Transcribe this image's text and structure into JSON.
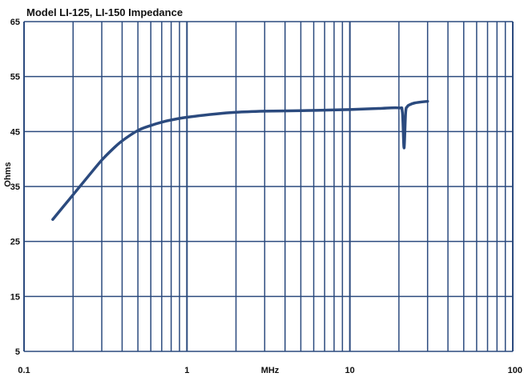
{
  "chart_data": {
    "type": "line",
    "title": "Model LI-125, LI-150 Impedance",
    "xlabel": "MHz",
    "ylabel": "Ohms",
    "x_scale": "log",
    "xlim": [
      0.1,
      100
    ],
    "ylim": [
      5,
      65
    ],
    "x_ticks": [
      0.1,
      1,
      10,
      100
    ],
    "x_tick_labels": [
      "0.1",
      "1",
      "10",
      "100"
    ],
    "y_ticks": [
      5,
      15,
      25,
      35,
      45,
      55,
      65
    ],
    "y_tick_labels": [
      "5",
      "15",
      "25",
      "35",
      "45",
      "55",
      "65"
    ],
    "grid": true,
    "colors": {
      "line": "#2b4a7e",
      "grid": "#2b4a7e",
      "background": "#ffffff"
    },
    "series": [
      {
        "x": [
          0.15,
          0.2,
          0.25,
          0.3,
          0.35,
          0.4,
          0.5,
          0.6,
          0.7,
          0.8,
          1,
          1.5,
          2,
          3,
          5,
          7,
          10,
          15,
          20,
          21,
          21.5,
          22,
          22.5,
          23,
          25,
          30
        ],
        "values": [
          29,
          33.5,
          37,
          39.8,
          41.8,
          43.3,
          45.2,
          46.1,
          46.7,
          47.1,
          47.6,
          48.2,
          48.5,
          48.7,
          48.8,
          48.9,
          49,
          49.2,
          49.3,
          48.5,
          42,
          48.5,
          49.5,
          49.8,
          50.2,
          50.5
        ]
      }
    ]
  }
}
